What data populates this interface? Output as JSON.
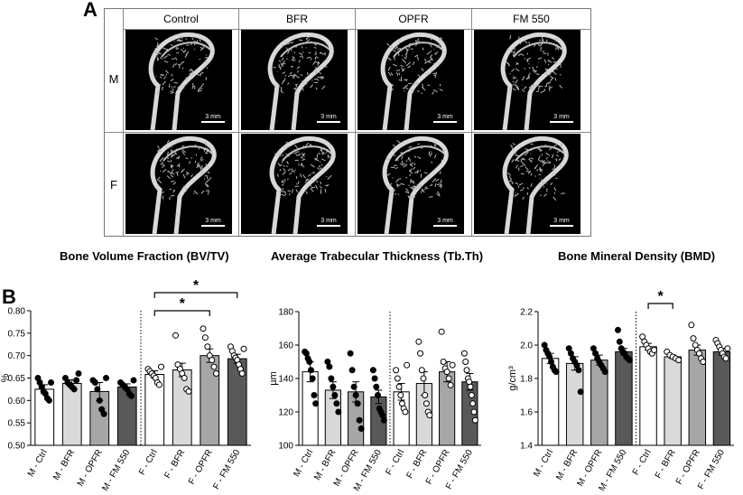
{
  "panel_a_label": "A",
  "panel_b_label": "B",
  "micro_ct": {
    "columns": [
      "Control",
      "BFR",
      "OPFR",
      "FM 550"
    ],
    "rows": [
      "M",
      "F"
    ],
    "scale_bar": "3 mm"
  },
  "chart_data": [
    {
      "type": "bar",
      "title": "Bone Volume Fraction (BV/TV)",
      "ylabel": "%",
      "ylim": [
        0.5,
        0.8
      ],
      "yticks": [
        "0.50",
        "0.55",
        "0.60",
        "0.65",
        "0.70",
        "0.75",
        "0.80"
      ],
      "categories": [
        "M - Ctrl",
        "M - BFR",
        "M - OPFR",
        "M - FM 550",
        "F - Ctrl",
        "F - BFR",
        "F - OPFR",
        "F - FM 550"
      ],
      "values": [
        0.625,
        0.638,
        0.62,
        0.63,
        0.658,
        0.668,
        0.7,
        0.693
      ],
      "errors": [
        0.01,
        0.008,
        0.02,
        0.007,
        0.008,
        0.015,
        0.015,
        0.01
      ],
      "points": [
        [
          0.65,
          0.64,
          0.63,
          0.62,
          0.615,
          0.605,
          0.6,
          0.64
        ],
        [
          0.65,
          0.64,
          0.635,
          0.63,
          0.625,
          0.645,
          0.66
        ],
        [
          0.645,
          0.64,
          0.625,
          0.6,
          0.58,
          0.57,
          0.65
        ],
        [
          0.64,
          0.635,
          0.63,
          0.625,
          0.615,
          0.61,
          0.645
        ],
        [
          0.67,
          0.665,
          0.66,
          0.655,
          0.65,
          0.64,
          0.635,
          0.675
        ],
        [
          0.745,
          0.68,
          0.67,
          0.66,
          0.65,
          0.625,
          0.62
        ],
        [
          0.76,
          0.74,
          0.72,
          0.7,
          0.69,
          0.675,
          0.66
        ],
        [
          0.72,
          0.71,
          0.7,
          0.695,
          0.69,
          0.68,
          0.67,
          0.66,
          0.715
        ]
      ],
      "fills": [
        "#ffffff",
        "#d9d9d9",
        "#a6a6a6",
        "#595959",
        "#ffffff",
        "#d9d9d9",
        "#a6a6a6",
        "#595959"
      ],
      "point_fills": [
        "#000000",
        "#000000",
        "#000000",
        "#000000",
        "#ffffff",
        "#ffffff",
        "#ffffff",
        "#ffffff"
      ],
      "significance": [
        {
          "from": 4,
          "to": 6,
          "label": "*"
        },
        {
          "from": 4,
          "to": 7,
          "label": "*"
        }
      ]
    },
    {
      "type": "bar",
      "title": "Average Trabecular Thickness (Tb.Th)",
      "ylabel": "µm",
      "ylim": [
        100,
        180
      ],
      "yticks": [
        "100",
        "120",
        "140",
        "160",
        "180"
      ],
      "categories": [
        "M - Ctrl",
        "M - BFR",
        "M - OPFR",
        "M - FM 550",
        "F - Ctrl",
        "F - BFR",
        "F - OPFR",
        "F - FM 550"
      ],
      "values": [
        144,
        133,
        132,
        129,
        132,
        137,
        144,
        138
      ],
      "errors": [
        6,
        5,
        6,
        4,
        5,
        7,
        6,
        5
      ],
      "points": [
        [
          156,
          155,
          152,
          150,
          145,
          140,
          130,
          125
        ],
        [
          150,
          147,
          140,
          135,
          130,
          125,
          120
        ],
        [
          155,
          145,
          135,
          130,
          125,
          115,
          110
        ],
        [
          145,
          140,
          135,
          130,
          122,
          120,
          118,
          115
        ],
        [
          145,
          140,
          135,
          130,
          125,
          122,
          120,
          148
        ],
        [
          162,
          155,
          145,
          140,
          130,
          125,
          120,
          118
        ],
        [
          168,
          150,
          146,
          144,
          140,
          136,
          148
        ],
        [
          155,
          150,
          145,
          140,
          138,
          135,
          130,
          125,
          120,
          115
        ]
      ],
      "fills": [
        "#ffffff",
        "#d9d9d9",
        "#a6a6a6",
        "#595959",
        "#ffffff",
        "#d9d9d9",
        "#a6a6a6",
        "#595959"
      ],
      "point_fills": [
        "#000000",
        "#000000",
        "#000000",
        "#000000",
        "#ffffff",
        "#ffffff",
        "#ffffff",
        "#ffffff"
      ],
      "significance": []
    },
    {
      "type": "bar",
      "title": "Bone Mineral Density (BMD)",
      "ylabel": "g/cm³",
      "ylim": [
        1.4,
        2.2
      ],
      "yticks": [
        "1.4",
        "1.6",
        "1.8",
        "2.0",
        "2.2"
      ],
      "categories": [
        "M - Ctrl",
        "M - BFR",
        "M - OPFR",
        "M - FM 550",
        "F - Ctrl",
        "F - BFR",
        "F - OPFR",
        "F - FM 550"
      ],
      "values": [
        1.92,
        1.89,
        1.91,
        1.96,
        1.99,
        1.93,
        1.97,
        1.96
      ],
      "errors": [
        0.03,
        0.04,
        0.03,
        0.02,
        0.02,
        0.01,
        0.03,
        0.02
      ],
      "points": [
        [
          2.0,
          1.97,
          1.95,
          1.93,
          1.9,
          1.87,
          1.85,
          1.84
        ],
        [
          1.98,
          1.95,
          1.92,
          1.9,
          1.88,
          1.85,
          1.72
        ],
        [
          1.98,
          1.95,
          1.92,
          1.9,
          1.88,
          1.86,
          1.84
        ],
        [
          2.09,
          2.02,
          1.98,
          1.96,
          1.95,
          1.93,
          1.92,
          1.91
        ],
        [
          2.05,
          2.02,
          2.0,
          1.98,
          1.96,
          1.95,
          1.97
        ],
        [
          1.96,
          1.94,
          1.93,
          1.92,
          1.91
        ],
        [
          2.12,
          2.04,
          2.0,
          1.97,
          1.95,
          1.92,
          1.9
        ],
        [
          2.03,
          2.01,
          1.99,
          1.97,
          1.95,
          1.93,
          1.92,
          1.98
        ]
      ],
      "fills": [
        "#ffffff",
        "#d9d9d9",
        "#a6a6a6",
        "#595959",
        "#ffffff",
        "#d9d9d9",
        "#a6a6a6",
        "#595959"
      ],
      "point_fills": [
        "#000000",
        "#000000",
        "#000000",
        "#000000",
        "#ffffff",
        "#ffffff",
        "#ffffff",
        "#ffffff"
      ],
      "significance": [
        {
          "from": 4,
          "to": 5,
          "label": "*"
        }
      ]
    }
  ]
}
